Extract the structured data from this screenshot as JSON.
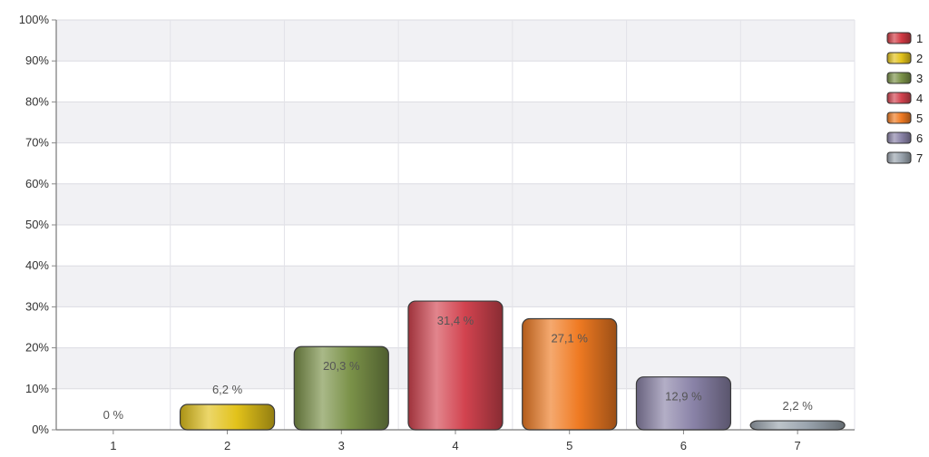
{
  "chart_data": {
    "type": "bar",
    "categories": [
      "1",
      "2",
      "3",
      "4",
      "5",
      "6",
      "7"
    ],
    "values": [
      0,
      6.2,
      20.3,
      31.4,
      27.1,
      12.9,
      2.2
    ],
    "data_labels": [
      "0 %",
      "6,2 %",
      "20,3 %",
      "31,4 %",
      "27,1 %",
      "12,9 %",
      "2,2 %"
    ],
    "colors": [
      "#d23a44",
      "#e2c21a",
      "#7a9148",
      "#d2434f",
      "#ef7a22",
      "#8a83a8",
      "#9aa4ae"
    ],
    "ylim": [
      0,
      100
    ],
    "y_ticks": [
      0,
      10,
      20,
      30,
      40,
      50,
      60,
      70,
      80,
      90,
      100
    ],
    "y_tick_labels": [
      "0%",
      "10%",
      "20%",
      "30%",
      "40%",
      "50%",
      "60%",
      "70%",
      "80%",
      "90%",
      "100%"
    ],
    "grid": true,
    "legend": {
      "placement": "right",
      "entries": [
        "1",
        "2",
        "3",
        "4",
        "5",
        "6",
        "7"
      ]
    },
    "title": "",
    "xlabel": "",
    "ylabel": ""
  }
}
